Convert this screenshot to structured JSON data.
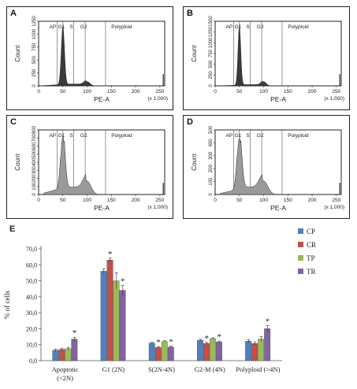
{
  "histogram_panels": [
    {
      "letter": "A",
      "gate_labels": [
        "AP",
        "G1",
        "S",
        "G2",
        "Polyploid"
      ],
      "y_label": "Count",
      "y_ticks": [
        0,
        250,
        500,
        750,
        1000,
        1250
      ],
      "x_label": "PE-A",
      "x_ticks": [
        0,
        50,
        100,
        150,
        200,
        250
      ],
      "x_unit": "(x 1,000)",
      "fill": "#3a3a3a"
    },
    {
      "letter": "B",
      "gate_labels": [
        "AP",
        "G1",
        "S",
        "G2",
        "Polyploid"
      ],
      "y_label": "Count",
      "y_ticks": [
        0,
        250,
        500,
        750,
        1000,
        1250,
        1500
      ],
      "x_label": "PE-A",
      "x_ticks": [
        0,
        50,
        100,
        150,
        200,
        250
      ],
      "x_unit": "(x 1,000)",
      "fill": "#3a3a3a"
    },
    {
      "letter": "C",
      "gate_labels": [
        "AP",
        "G1",
        "S",
        "G2",
        "Polyploid"
      ],
      "y_label": "Count",
      "y_ticks": [
        0,
        100,
        200,
        300,
        400,
        500,
        600,
        700,
        800
      ],
      "x_label": "PE-A",
      "x_ticks": [
        0,
        50,
        100,
        150,
        200,
        250
      ],
      "x_unit": "(x 1,000)",
      "fill": "#9a9a9a"
    },
    {
      "letter": "D",
      "gate_labels": [
        "AP",
        "G1",
        "S",
        "G2",
        "Polyploid"
      ],
      "y_label": "Count",
      "y_ticks": [
        0,
        100,
        200,
        300,
        400,
        500
      ],
      "x_label": "PE-A",
      "x_ticks": [
        0,
        50,
        100,
        150,
        200,
        250
      ],
      "x_unit": "(x 1,000)",
      "fill": "#9a9a9a"
    }
  ],
  "chart_data": {
    "type": "bar",
    "panel_letter": "E",
    "ylabel": "% of cells",
    "ylim": [
      0,
      70
    ],
    "yticks": [
      "0,0",
      "10,0",
      "20,0",
      "30,0",
      "40,0",
      "50,0",
      "60,0",
      "70,0"
    ],
    "categories": [
      [
        "Apoptotic",
        "(<2N)"
      ],
      [
        "G1 (2N)"
      ],
      [
        "S(2N-4N)"
      ],
      [
        "G2-M (4N)"
      ],
      [
        "Polyploid (>4N)"
      ]
    ],
    "series": [
      {
        "name": "CP",
        "color": "#4f81bd",
        "values": [
          6.5,
          56.0,
          11.0,
          12.8,
          12.2
        ],
        "errors": [
          0.8,
          1.5,
          0.5,
          0.6,
          1.0
        ],
        "significant": [
          false,
          false,
          false,
          false,
          false
        ]
      },
      {
        "name": "CR",
        "color": "#c0504d",
        "values": [
          7.0,
          63.0,
          8.2,
          10.8,
          10.8
        ],
        "errors": [
          0.8,
          1.2,
          0.6,
          0.6,
          1.0
        ],
        "significant": [
          false,
          true,
          true,
          true,
          false
        ]
      },
      {
        "name": "TP",
        "color": "#9bbb59",
        "values": [
          7.5,
          50.0,
          12.0,
          13.8,
          13.5
        ],
        "errors": [
          0.8,
          5.0,
          0.5,
          0.5,
          1.5
        ],
        "significant": [
          false,
          false,
          false,
          false,
          false
        ]
      },
      {
        "name": "TR",
        "color": "#8064a2",
        "values": [
          13.5,
          44.0,
          8.5,
          11.7,
          20.0
        ],
        "errors": [
          1.2,
          3.0,
          0.6,
          0.6,
          2.0
        ],
        "significant": [
          true,
          true,
          true,
          true,
          true
        ]
      }
    ],
    "significance_marker": "*",
    "legend_position": "top-right"
  }
}
